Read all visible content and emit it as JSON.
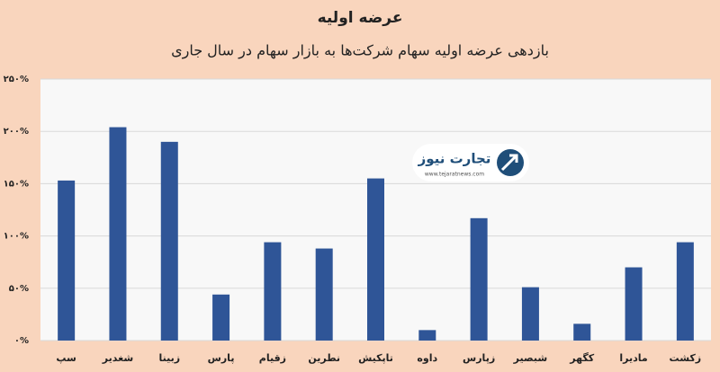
{
  "chart_data": {
    "type": "bar",
    "title": "عرضه اولیه",
    "subtitle": "بازدهی عرضه اولیه سهام شرکت‌ها به بازار سهام در سال جاری",
    "categories": [
      "سپ",
      "شغدیر",
      "زبینا",
      "پارس",
      "زقیام",
      "نطرین",
      "تاپکیش",
      "داوه",
      "زپارس",
      "شبصیر",
      "کگهر",
      "مادیرا",
      "زکشت"
    ],
    "values": [
      153,
      204,
      190,
      44,
      94,
      88,
      155,
      10,
      117,
      51,
      16,
      70,
      94
    ],
    "color": "#2f5597",
    "ylim": [
      0,
      250
    ],
    "yticks": [
      {
        "value": 0,
        "label": "۰%"
      },
      {
        "value": 50,
        "label": "۵۰%"
      },
      {
        "value": 100,
        "label": "۱۰۰%"
      },
      {
        "value": 150,
        "label": "۱۵۰%"
      },
      {
        "value": 200,
        "label": "۲۰۰%"
      },
      {
        "value": 250,
        "label": "۲۵۰%"
      }
    ],
    "grid": true,
    "watermark": {
      "name": "تجارت نیوز",
      "url": "www.tejaratnews.com"
    }
  }
}
